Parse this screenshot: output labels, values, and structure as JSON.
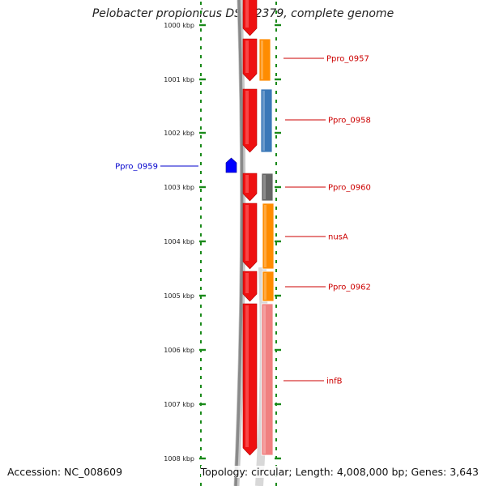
{
  "title": "Pelobacter propionicus DSM 2379, complete genome",
  "footer": {
    "accession": "Accession: NC_008609",
    "summary": "Topology: circular; Length: 4,008,000 bp; Genes: 3,643"
  },
  "colors": {
    "backbone": "#8a8a8a",
    "ruler": "#1a8a1a",
    "cds_strand": "#ee1111",
    "label_forward": "#cc0000",
    "label_reverse": "#0000cc"
  },
  "ticks": [
    {
      "label": "1000 kbp"
    },
    {
      "label": "1001 kbp"
    },
    {
      "label": "1002 kbp"
    },
    {
      "label": "1003 kbp"
    },
    {
      "label": "1004 kbp"
    },
    {
      "label": "1005 kbp"
    },
    {
      "label": "1006 kbp"
    },
    {
      "label": "1007 kbp"
    },
    {
      "label": "1008 kbp"
    }
  ],
  "features": [
    {
      "label": "Ppro_0957",
      "strand": "forward",
      "category_color": "#ff8c00"
    },
    {
      "label": "Ppro_0958",
      "strand": "forward",
      "category_color": "#3a78b8"
    },
    {
      "label": "Ppro_0959",
      "strand": "reverse",
      "category_color": "#0000ff"
    },
    {
      "label": "Ppro_0960",
      "strand": "forward",
      "category_color": "#666666"
    },
    {
      "label": "nusA",
      "strand": "forward",
      "category_color": "#ff8c00"
    },
    {
      "label": "Ppro_0962",
      "strand": "forward",
      "category_color": "#ff8c00"
    },
    {
      "label": "infB",
      "strand": "forward",
      "category_color": "#f08080"
    }
  ]
}
